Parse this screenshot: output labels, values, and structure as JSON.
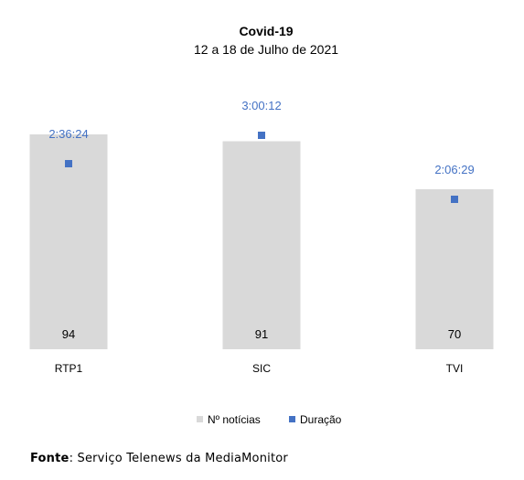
{
  "chart_data": {
    "type": "bar",
    "title": "Covid-19",
    "subtitle": "12 a 18 de Julho de 2021",
    "categories": [
      "RTP1",
      "SIC",
      "TVI"
    ],
    "series": [
      {
        "name": "Nº notícias",
        "kind": "bar",
        "color": "#d9d9d9",
        "values": [
          94,
          91,
          70
        ],
        "labels": [
          "94",
          "91",
          "70"
        ]
      },
      {
        "name": "Duração",
        "kind": "marker",
        "color": "#4472c4",
        "values_seconds": [
          9384,
          10812,
          7589
        ],
        "labels": [
          "2:36:24",
          "3:00:12",
          "2:06:29"
        ]
      }
    ],
    "legend_position": "bottom",
    "grid": false
  },
  "source": {
    "label": "Fonte",
    "text": ": Serviço Telenews da MediaMonitor"
  }
}
